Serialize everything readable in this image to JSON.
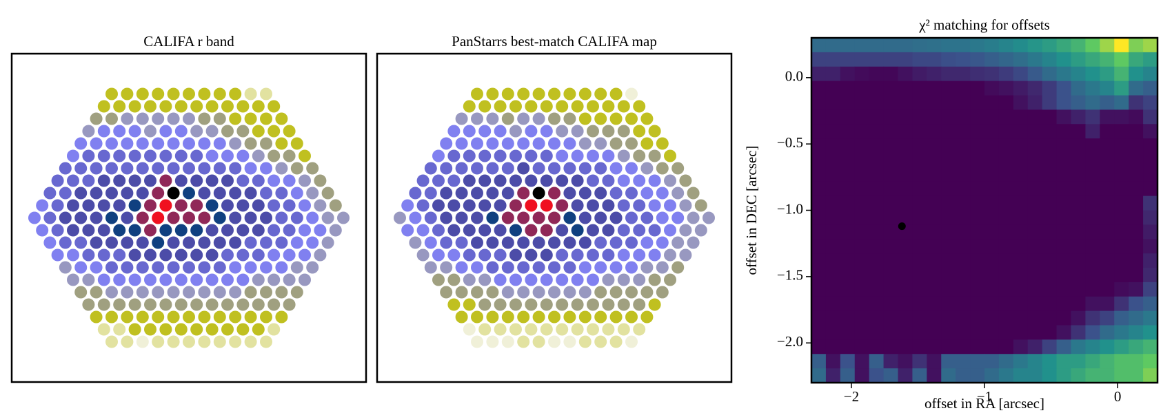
{
  "chart_data": [
    {
      "type": "hexmap",
      "title": "CALIFA r band",
      "colors": [
        "#f0f0d8",
        "#e2e2a0",
        "#c0c020",
        "#a0a080",
        "#9898c0",
        "#8080f0",
        "#6868d0",
        "#4c4ca8",
        "#104080",
        "#902858",
        "#f01020",
        "#000000"
      ],
      "rows": [
        [
          2,
          2,
          2,
          2,
          2,
          2,
          2,
          2,
          2,
          1,
          1
        ],
        [
          2,
          2,
          2,
          2,
          2,
          2,
          2,
          2,
          2,
          2,
          2,
          2
        ],
        [
          3,
          3,
          4,
          4,
          4,
          4,
          4,
          3,
          3,
          2,
          2,
          2,
          2
        ],
        [
          4,
          5,
          5,
          5,
          4,
          5,
          5,
          4,
          4,
          3,
          3,
          2,
          2,
          2
        ],
        [
          5,
          5,
          5,
          5,
          5,
          5,
          5,
          5,
          5,
          5,
          4,
          3,
          3,
          2,
          2
        ],
        [
          5,
          6,
          6,
          6,
          6,
          6,
          6,
          6,
          6,
          5,
          5,
          5,
          4,
          3,
          3,
          2
        ],
        [
          6,
          6,
          6,
          6,
          6,
          6,
          6,
          6,
          6,
          6,
          6,
          6,
          5,
          5,
          4,
          3,
          3
        ],
        [
          6,
          6,
          6,
          7,
          7,
          7,
          7,
          9,
          7,
          7,
          7,
          7,
          6,
          6,
          5,
          5,
          4,
          3
        ],
        [
          6,
          6,
          7,
          7,
          7,
          7,
          7,
          9,
          11,
          8,
          7,
          7,
          7,
          7,
          6,
          6,
          5,
          4,
          3
        ],
        [
          5,
          6,
          7,
          7,
          7,
          7,
          8,
          9,
          10,
          9,
          9,
          8,
          7,
          7,
          7,
          6,
          6,
          5,
          4,
          3
        ],
        [
          5,
          6,
          7,
          7,
          7,
          8,
          7,
          9,
          10,
          9,
          9,
          9,
          8,
          7,
          7,
          7,
          6,
          6,
          5,
          4,
          4
        ],
        [
          5,
          6,
          7,
          7,
          7,
          8,
          8,
          9,
          8,
          8,
          8,
          7,
          7,
          7,
          7,
          6,
          6,
          5,
          5,
          4
        ],
        [
          5,
          6,
          6,
          7,
          7,
          7,
          7,
          8,
          7,
          7,
          7,
          7,
          7,
          6,
          6,
          6,
          5,
          5,
          4
        ],
        [
          5,
          5,
          6,
          6,
          6,
          7,
          7,
          7,
          7,
          7,
          7,
          6,
          6,
          6,
          5,
          5,
          5,
          4
        ],
        [
          4,
          5,
          5,
          6,
          6,
          6,
          6,
          6,
          6,
          6,
          6,
          5,
          5,
          5,
          5,
          4,
          4
        ],
        [
          4,
          4,
          5,
          5,
          5,
          5,
          5,
          5,
          5,
          5,
          5,
          5,
          4,
          4,
          4,
          4
        ],
        [
          3,
          3,
          4,
          4,
          4,
          4,
          4,
          4,
          4,
          4,
          4,
          3,
          3,
          3,
          3
        ],
        [
          3,
          3,
          3,
          3,
          3,
          3,
          3,
          3,
          3,
          3,
          3,
          3,
          3,
          3
        ],
        [
          2,
          2,
          2,
          2,
          2,
          2,
          2,
          2,
          2,
          2,
          2,
          2,
          2
        ],
        [
          1,
          1,
          2,
          2,
          2,
          2,
          2,
          2,
          2,
          2,
          2,
          1
        ],
        [
          1,
          1,
          0,
          1,
          1,
          1,
          1,
          1,
          1,
          1,
          1
        ]
      ]
    },
    {
      "type": "hexmap",
      "title": "PanStarrs best-match CALIFA map",
      "colors": [
        "#f0f0d8",
        "#e2e2a0",
        "#c0c020",
        "#a0a080",
        "#9898c0",
        "#8080f0",
        "#6868d0",
        "#4c4ca8",
        "#104080",
        "#902858",
        "#f01020",
        "#000000"
      ],
      "rows": [
        [
          2,
          2,
          2,
          2,
          2,
          2,
          2,
          2,
          2,
          2,
          0
        ],
        [
          2,
          2,
          2,
          2,
          2,
          2,
          2,
          2,
          2,
          2,
          2,
          2
        ],
        [
          4,
          4,
          4,
          3,
          4,
          4,
          3,
          3,
          2,
          2,
          2,
          2,
          2
        ],
        [
          5,
          5,
          5,
          5,
          4,
          5,
          5,
          4,
          4,
          3,
          3,
          3,
          2,
          2
        ],
        [
          5,
          5,
          5,
          5,
          5,
          5,
          5,
          5,
          5,
          4,
          4,
          3,
          3,
          2,
          2
        ],
        [
          5,
          6,
          6,
          6,
          6,
          6,
          6,
          6,
          5,
          5,
          5,
          5,
          4,
          3,
          3,
          2
        ],
        [
          6,
          6,
          6,
          6,
          6,
          6,
          7,
          6,
          6,
          6,
          6,
          6,
          5,
          5,
          4,
          3,
          3
        ],
        [
          6,
          6,
          6,
          7,
          7,
          7,
          7,
          7,
          7,
          7,
          7,
          6,
          6,
          5,
          5,
          5,
          4,
          3
        ],
        [
          6,
          6,
          7,
          7,
          7,
          7,
          7,
          9,
          11,
          9,
          7,
          7,
          7,
          6,
          6,
          5,
          5,
          4,
          3
        ],
        [
          5,
          6,
          7,
          7,
          7,
          7,
          7,
          9,
          10,
          10,
          9,
          7,
          7,
          7,
          6,
          6,
          5,
          5,
          4,
          3
        ],
        [
          4,
          5,
          6,
          7,
          7,
          7,
          8,
          9,
          9,
          9,
          9,
          8,
          7,
          7,
          7,
          6,
          6,
          5,
          5,
          4,
          4
        ],
        [
          5,
          5,
          6,
          7,
          7,
          7,
          7,
          8,
          9,
          9,
          7,
          8,
          7,
          7,
          6,
          6,
          6,
          5,
          4,
          4
        ],
        [
          4,
          5,
          6,
          6,
          7,
          7,
          7,
          7,
          7,
          7,
          7,
          7,
          6,
          6,
          6,
          5,
          5,
          4,
          4
        ],
        [
          4,
          5,
          5,
          6,
          6,
          6,
          7,
          7,
          7,
          6,
          6,
          6,
          6,
          5,
          5,
          5,
          4,
          4
        ],
        [
          4,
          4,
          5,
          5,
          6,
          6,
          6,
          6,
          6,
          6,
          5,
          5,
          5,
          5,
          4,
          4,
          3
        ],
        [
          3,
          3,
          4,
          4,
          5,
          5,
          5,
          5,
          5,
          5,
          5,
          4,
          4,
          4,
          3,
          3
        ],
        [
          3,
          3,
          3,
          3,
          4,
          4,
          4,
          4,
          4,
          4,
          3,
          3,
          3,
          3,
          3
        ],
        [
          2,
          2,
          3,
          3,
          3,
          3,
          3,
          3,
          3,
          3,
          3,
          3,
          3,
          2
        ],
        [
          2,
          2,
          2,
          2,
          2,
          2,
          2,
          2,
          2,
          2,
          2,
          2,
          2
        ],
        [
          0,
          1,
          1,
          1,
          1,
          1,
          1,
          1,
          1,
          1,
          1,
          1
        ],
        [
          0,
          0,
          0,
          1,
          1,
          0,
          0,
          1,
          1,
          1,
          0
        ]
      ]
    },
    {
      "type": "heatmap",
      "title": "χ² matching for offsets",
      "xlabel": "offset in RA [arcsec]",
      "ylabel": "offset in DEC [arcsec]",
      "xlim": [
        -2.3,
        0.3
      ],
      "ylim": [
        -2.3,
        0.3
      ],
      "xticks": [
        {
          "value": -2,
          "label": "−2"
        },
        {
          "value": -1,
          "label": "−1"
        },
        0
      ],
      "yticks": [
        {
          "value": 0,
          "label": "0.0"
        },
        {
          "value": -0.5,
          "label": "−0.5"
        },
        {
          "value": -1,
          "label": "−1.0"
        },
        {
          "value": -1.5,
          "label": "−1.5"
        },
        {
          "value": -2,
          "label": "−2.0"
        }
      ],
      "colormap": "viridis",
      "z": [
        [
          0.35,
          0.35,
          0.35,
          0.35,
          0.35,
          0.35,
          0.35,
          0.36,
          0.37,
          0.38,
          0.38,
          0.4,
          0.42,
          0.45,
          0.48,
          0.52,
          0.55,
          0.6,
          0.65,
          0.75,
          0.85,
          1.0,
          0.8,
          0.85
        ],
        [
          0.2,
          0.2,
          0.2,
          0.2,
          0.2,
          0.2,
          0.2,
          0.22,
          0.22,
          0.24,
          0.25,
          0.27,
          0.3,
          0.33,
          0.36,
          0.4,
          0.45,
          0.5,
          0.55,
          0.6,
          0.65,
          0.75,
          0.6,
          0.55
        ],
        [
          0.1,
          0.1,
          0.05,
          0.03,
          0.02,
          0.02,
          0.05,
          0.08,
          0.1,
          0.12,
          0.12,
          0.14,
          0.15,
          0.18,
          0.22,
          0.28,
          0.35,
          0.4,
          0.45,
          0.5,
          0.55,
          0.65,
          0.5,
          0.45
        ],
        [
          0,
          0,
          0,
          0,
          0,
          0,
          0,
          0,
          0,
          0,
          0,
          0,
          0.03,
          0.05,
          0.08,
          0.12,
          0.18,
          0.25,
          0.35,
          0.4,
          0.45,
          0.55,
          0.35,
          0.3
        ],
        [
          0,
          0,
          0,
          0,
          0,
          0,
          0,
          0,
          0,
          0,
          0,
          0,
          0,
          0,
          0.05,
          0.1,
          0.18,
          0.25,
          0.3,
          0.35,
          0.3,
          0.35,
          0.15,
          0.2
        ],
        [
          0,
          0,
          0,
          0,
          0,
          0,
          0,
          0,
          0,
          0,
          0,
          0,
          0,
          0,
          0,
          0,
          0,
          0.05,
          0.1,
          0.15,
          0.05,
          0.05,
          0.03,
          0.15
        ],
        [
          0,
          0,
          0,
          0,
          0,
          0,
          0,
          0,
          0,
          0,
          0,
          0,
          0,
          0,
          0,
          0,
          0,
          0,
          0,
          0.1,
          0,
          0,
          0,
          0.05
        ],
        [
          0,
          0,
          0,
          0,
          0,
          0,
          0,
          0,
          0,
          0,
          0,
          0,
          0,
          0,
          0,
          0,
          0,
          0,
          0,
          0,
          0,
          0,
          0,
          0
        ],
        [
          0,
          0,
          0,
          0,
          0,
          0,
          0,
          0,
          0,
          0,
          0,
          0,
          0,
          0,
          0,
          0,
          0,
          0,
          0,
          0,
          0,
          0,
          0,
          0
        ],
        [
          0,
          0,
          0,
          0,
          0,
          0,
          0,
          0,
          0,
          0,
          0,
          0,
          0,
          0,
          0,
          0,
          0,
          0,
          0,
          0,
          0,
          0,
          0,
          0
        ],
        [
          0,
          0,
          0,
          0,
          0,
          0,
          0,
          0,
          0,
          0,
          0,
          0,
          0,
          0,
          0,
          0,
          0,
          0,
          0,
          0,
          0,
          0,
          0,
          0
        ],
        [
          0,
          0,
          0,
          0,
          0,
          0,
          0,
          0,
          0,
          0,
          0,
          0,
          0,
          0,
          0,
          0,
          0,
          0,
          0,
          0,
          0,
          0,
          0,
          0.15
        ],
        [
          0,
          0,
          0,
          0,
          0,
          0,
          0,
          0,
          0,
          0,
          0,
          0,
          0,
          0,
          0,
          0,
          0,
          0,
          0,
          0,
          0,
          0,
          0,
          0.12
        ],
        [
          0,
          0,
          0,
          0,
          0,
          0,
          0,
          0,
          0,
          0,
          0,
          0,
          0,
          0,
          0,
          0,
          0,
          0,
          0,
          0,
          0,
          0,
          0,
          0.08
        ],
        [
          0,
          0,
          0,
          0,
          0,
          0,
          0,
          0,
          0,
          0,
          0,
          0,
          0,
          0,
          0,
          0,
          0,
          0,
          0,
          0,
          0,
          0,
          0,
          0.05
        ],
        [
          0,
          0,
          0,
          0,
          0,
          0,
          0,
          0,
          0,
          0,
          0,
          0,
          0,
          0,
          0,
          0,
          0,
          0,
          0,
          0,
          0,
          0,
          0,
          0.1
        ],
        [
          0,
          0,
          0,
          0,
          0,
          0,
          0,
          0,
          0,
          0,
          0,
          0,
          0,
          0,
          0,
          0,
          0,
          0,
          0,
          0,
          0,
          0,
          0,
          0.12
        ],
        [
          0,
          0,
          0,
          0,
          0,
          0,
          0,
          0,
          0,
          0,
          0,
          0,
          0,
          0,
          0,
          0,
          0,
          0,
          0,
          0,
          0,
          0.03,
          0.05,
          0.2
        ],
        [
          0,
          0,
          0,
          0,
          0,
          0,
          0,
          0,
          0,
          0,
          0,
          0,
          0,
          0,
          0,
          0,
          0,
          0,
          0,
          0.05,
          0.05,
          0.15,
          0.25,
          0.3
        ],
        [
          0,
          0,
          0,
          0,
          0,
          0,
          0,
          0,
          0,
          0,
          0,
          0,
          0,
          0,
          0,
          0,
          0,
          0,
          0.05,
          0.15,
          0.2,
          0.3,
          0.35,
          0.4
        ],
        [
          0,
          0,
          0,
          0,
          0,
          0,
          0,
          0,
          0,
          0,
          0,
          0,
          0,
          0,
          0,
          0,
          0,
          0.05,
          0.15,
          0.25,
          0.35,
          0.4,
          0.45,
          0.5
        ],
        [
          0,
          0,
          0,
          0,
          0,
          0,
          0,
          0,
          0,
          0,
          0,
          0,
          0,
          0,
          0.05,
          0.1,
          0.2,
          0.3,
          0.4,
          0.45,
          0.5,
          0.55,
          0.6,
          0.65
        ],
        [
          0.3,
          0.05,
          0.25,
          0.05,
          0.3,
          0.1,
          0.05,
          0.15,
          0.05,
          0.3,
          0.3,
          0.3,
          0.3,
          0.35,
          0.4,
          0.45,
          0.5,
          0.55,
          0.55,
          0.6,
          0.65,
          0.7,
          0.7,
          0.75
        ],
        [
          0.35,
          0.1,
          0.3,
          0.05,
          0.25,
          0.3,
          0.1,
          0.3,
          0.05,
          0.35,
          0.3,
          0.3,
          0.35,
          0.4,
          0.45,
          0.45,
          0.5,
          0.55,
          0.6,
          0.65,
          0.65,
          0.7,
          0.7,
          0.8
        ]
      ],
      "points": {
        "x": [
          -1.62
        ],
        "y": [
          -1.12
        ],
        "color": "#000000"
      }
    }
  ]
}
